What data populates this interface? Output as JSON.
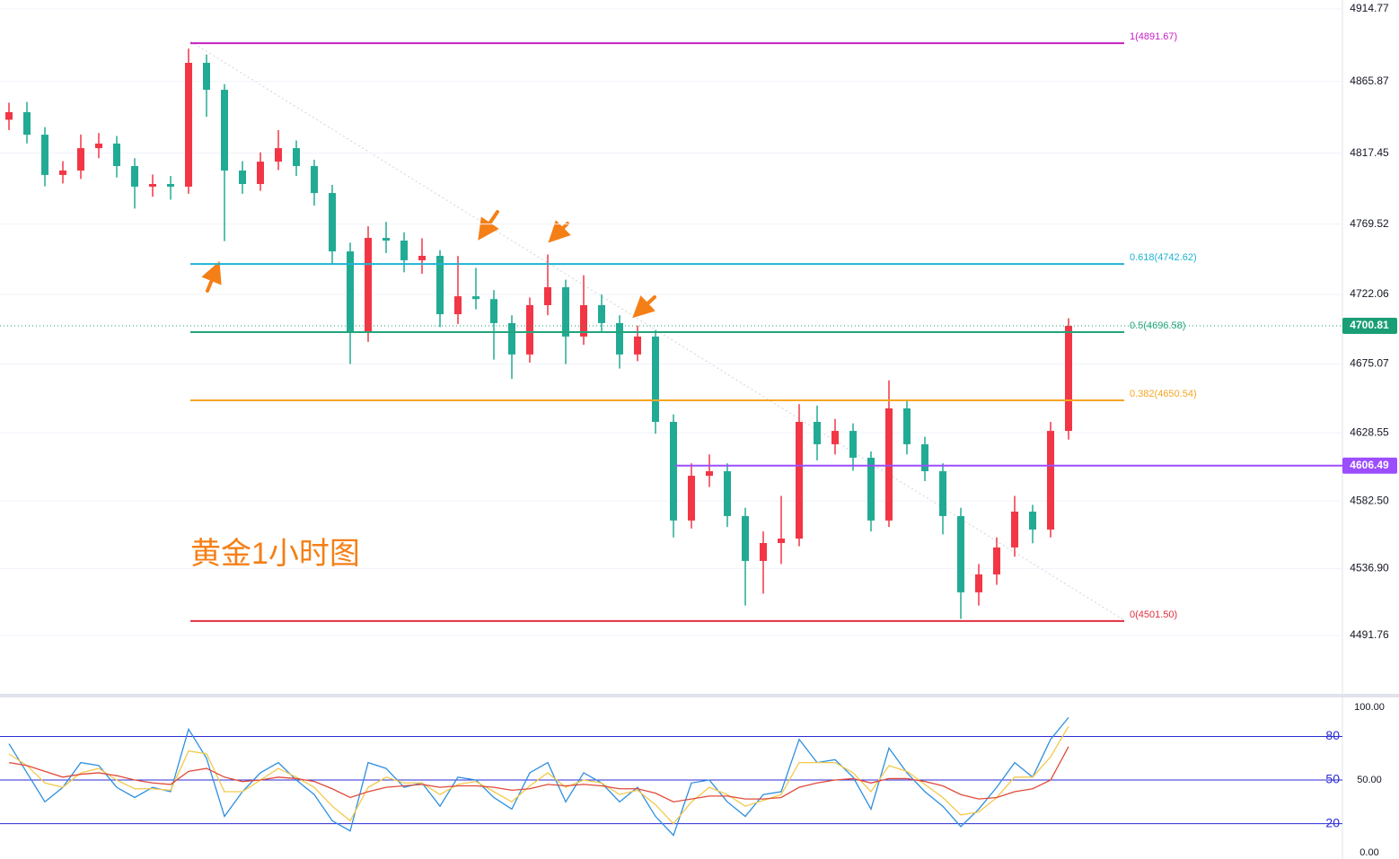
{
  "chart_data": {
    "type": "candlestick",
    "annotation": "黄金1小时图",
    "up_color": "#f23645",
    "down_color": "#22ab94",
    "ylim": [
      4451.16,
      4920.83
    ],
    "yticks": [
      4914.77,
      4865.87,
      4817.45,
      4769.52,
      4722.06,
      4675.07,
      4628.55,
      {
        "value": 4582.5,
        "label": "4582.50"
      },
      {
        "value": 4536.9,
        "label": "4536.90"
      },
      4491.76
    ],
    "candles": [
      {
        "o": 4840.0,
        "h": 4851.5,
        "l": 4833.0,
        "c": 4845.1
      },
      {
        "o": 4845.1,
        "h": 4852,
        "l": 4824,
        "c": 4829.9
      },
      {
        "o": 4829.9,
        "h": 4835,
        "l": 4795,
        "c": 4802.7
      },
      {
        "o": 4802.7,
        "h": 4812,
        "l": 4797,
        "c": 4805.7
      },
      {
        "o": 4805.7,
        "h": 4830,
        "l": 4800,
        "c": 4820.8
      },
      {
        "o": 4820.8,
        "h": 4831,
        "l": 4814,
        "c": 4823.9
      },
      {
        "o": 4823.9,
        "h": 4829,
        "l": 4801,
        "c": 4808.7
      },
      {
        "o": 4808.7,
        "h": 4814,
        "l": 4780,
        "c": 4794.8
      },
      {
        "o": 4794.8,
        "h": 4803,
        "l": 4788,
        "c": 4796.6
      },
      {
        "o": 4796.6,
        "h": 4802,
        "l": 4786,
        "c": 4794.8
      },
      {
        "o": 4794.8,
        "h": 4888,
        "l": 4790,
        "c": 4878.4
      },
      {
        "o": 4878.4,
        "h": 4884,
        "l": 4842,
        "c": 4860.2
      },
      {
        "o": 4860.2,
        "h": 4864,
        "l": 4758,
        "c": 4805.7
      },
      {
        "o": 4805.7,
        "h": 4812,
        "l": 4790,
        "c": 4796.6
      },
      {
        "o": 4796.6,
        "h": 4818,
        "l": 4792,
        "c": 4811.7
      },
      {
        "o": 4811.7,
        "h": 4833,
        "l": 4806,
        "c": 4820.8
      },
      {
        "o": 4820.8,
        "h": 4826,
        "l": 4802,
        "c": 4808.7
      },
      {
        "o": 4808.7,
        "h": 4813,
        "l": 4782,
        "c": 4790.5
      },
      {
        "o": 4790.5,
        "h": 4796,
        "l": 4742,
        "c": 4751.1
      },
      {
        "o": 4751.1,
        "h": 4757,
        "l": 4675,
        "c": 4696.6
      },
      {
        "o": 4696.6,
        "h": 4768,
        "l": 4690,
        "c": 4760.2
      },
      {
        "o": 4760.2,
        "h": 4771,
        "l": 4750,
        "c": 4758.4
      },
      {
        "o": 4758.4,
        "h": 4764,
        "l": 4737,
        "c": 4745.1
      },
      {
        "o": 4745.1,
        "h": 4760,
        "l": 4736,
        "c": 4748.1
      },
      {
        "o": 4748.1,
        "h": 4752,
        "l": 4700,
        "c": 4708.7
      },
      {
        "o": 4708.7,
        "h": 4748,
        "l": 4702,
        "c": 4720.8
      },
      {
        "o": 4720.8,
        "h": 4740,
        "l": 4712,
        "c": 4718.9
      },
      {
        "o": 4718.9,
        "h": 4725,
        "l": 4678,
        "c": 4702.7
      },
      {
        "o": 4702.7,
        "h": 4708,
        "l": 4665,
        "c": 4681.5
      },
      {
        "o": 4681.5,
        "h": 4720,
        "l": 4676,
        "c": 4714.8
      },
      {
        "o": 4714.8,
        "h": 4749,
        "l": 4708,
        "c": 4726.9
      },
      {
        "o": 4726.9,
        "h": 4732,
        "l": 4675,
        "c": 4693.6
      },
      {
        "o": 4693.6,
        "h": 4735,
        "l": 4688,
        "c": 4714.8
      },
      {
        "o": 4714.8,
        "h": 4722,
        "l": 4696,
        "c": 4702.7
      },
      {
        "o": 4702.7,
        "h": 4708,
        "l": 4672,
        "c": 4681.5
      },
      {
        "o": 4681.5,
        "h": 4701,
        "l": 4677,
        "c": 4693.6
      },
      {
        "o": 4693.6,
        "h": 4698,
        "l": 4628,
        "c": 4636.0
      },
      {
        "o": 4636.0,
        "h": 4641,
        "l": 4558,
        "c": 4569.4
      },
      {
        "o": 4569.4,
        "h": 4608,
        "l": 4564,
        "c": 4599.6
      },
      {
        "o": 4599.6,
        "h": 4614,
        "l": 4592,
        "c": 4602.7
      },
      {
        "o": 4602.7,
        "h": 4608,
        "l": 4565,
        "c": 4572.4
      },
      {
        "o": 4572.4,
        "h": 4578,
        "l": 4512,
        "c": 4542.1
      },
      {
        "o": 4542.1,
        "h": 4562,
        "l": 4520,
        "c": 4554.2
      },
      {
        "o": 4554.2,
        "h": 4586,
        "l": 4540,
        "c": 4557.2
      },
      {
        "o": 4557.2,
        "h": 4648,
        "l": 4552,
        "c": 4636.0
      },
      {
        "o": 4636.0,
        "h": 4647,
        "l": 4610,
        "c": 4620.9
      },
      {
        "o": 4620.9,
        "h": 4638,
        "l": 4614,
        "c": 4629.9
      },
      {
        "o": 4629.9,
        "h": 4635,
        "l": 4603,
        "c": 4611.8
      },
      {
        "o": 4611.8,
        "h": 4616,
        "l": 4562,
        "c": 4569.4
      },
      {
        "o": 4569.4,
        "h": 4664,
        "l": 4565,
        "c": 4645.1
      },
      {
        "o": 4645.1,
        "h": 4651,
        "l": 4614,
        "c": 4620.9
      },
      {
        "o": 4620.9,
        "h": 4626,
        "l": 4596,
        "c": 4602.7
      },
      {
        "o": 4602.7,
        "h": 4608,
        "l": 4560,
        "c": 4572.4
      },
      {
        "o": 4572.4,
        "h": 4578,
        "l": 4503,
        "c": 4520.9
      },
      {
        "o": 4520.9,
        "h": 4540,
        "l": 4512,
        "c": 4533.0
      },
      {
        "o": 4533.0,
        "h": 4558,
        "l": 4526,
        "c": 4551.2
      },
      {
        "o": 4551.2,
        "h": 4586,
        "l": 4545,
        "c": 4575.4
      },
      {
        "o": 4575.4,
        "h": 4580,
        "l": 4554,
        "c": 4563.3
      },
      {
        "o": 4563.3,
        "h": 4636,
        "l": 4558,
        "c": 4629.9
      },
      {
        "o": 4629.9,
        "h": 4706,
        "l": 4624,
        "c": 4700.81
      }
    ],
    "fib_levels": [
      {
        "value": 4891.67,
        "label": "1(4891.67)",
        "color": "#c61fc4"
      },
      {
        "value": 4742.62,
        "label": "0.618(4742.62)",
        "color": "#1fb3d1"
      },
      {
        "value": 4696.58,
        "label": "0.5(4696.58)",
        "color": "#22a57a"
      },
      {
        "value": 4650.54,
        "label": "0.382(4650.54)",
        "color": "#f5a623"
      },
      {
        "value": 4501.5,
        "label": "0(4501.50)",
        "color": "#e0303f"
      }
    ],
    "price_lines": [
      {
        "value": 4700.81,
        "color": "#1a9e76"
      },
      {
        "value": 4606.49,
        "color": "#9c4dff"
      }
    ],
    "rsi": {
      "ylim": [
        -4.3,
        106.2
      ],
      "yticks": [
        {
          "value": 100,
          "label": "100.00"
        },
        {
          "value": 50,
          "label": "50.00"
        },
        {
          "value": 0,
          "label": "0.00"
        }
      ],
      "levels": [
        80,
        50,
        20
      ],
      "level_color": "#2b2bd6",
      "series": [
        {
          "color": "#2e8fe0",
          "values": [
            75,
            55,
            35,
            45,
            62,
            60,
            45,
            38,
            45,
            42,
            85,
            65,
            25,
            42,
            55,
            62,
            50,
            40,
            22,
            15,
            62,
            58,
            45,
            48,
            32,
            52,
            50,
            38,
            30,
            55,
            62,
            35,
            55,
            48,
            35,
            45,
            25,
            12,
            48,
            50,
            35,
            25,
            40,
            42,
            78,
            62,
            64,
            52,
            30,
            72,
            55,
            42,
            32,
            18,
            30,
            45,
            62,
            52,
            78,
            93
          ]
        },
        {
          "color": "#f2c94c",
          "values": [
            68,
            60,
            48,
            45,
            55,
            58,
            50,
            44,
            44,
            43,
            70,
            68,
            42,
            42,
            50,
            58,
            52,
            45,
            32,
            22,
            45,
            52,
            48,
            48,
            40,
            47,
            49,
            42,
            35,
            46,
            55,
            45,
            50,
            48,
            40,
            43,
            33,
            20,
            35,
            45,
            40,
            32,
            36,
            40,
            62,
            62,
            62,
            55,
            42,
            60,
            56,
            47,
            38,
            26,
            28,
            38,
            52,
            52,
            66,
            87
          ]
        },
        {
          "color": "#e04a3a",
          "values": [
            62,
            60,
            56,
            52,
            54,
            55,
            53,
            50,
            48,
            47,
            56,
            58,
            52,
            49,
            50,
            52,
            51,
            49,
            44,
            38,
            42,
            45,
            46,
            47,
            45,
            46,
            46,
            45,
            43,
            44,
            47,
            46,
            47,
            46,
            44,
            44,
            41,
            35,
            37,
            39,
            39,
            37,
            37,
            38,
            45,
            48,
            50,
            51,
            48,
            51,
            51,
            49,
            46,
            40,
            37,
            38,
            42,
            44,
            50,
            73
          ]
        }
      ]
    }
  }
}
